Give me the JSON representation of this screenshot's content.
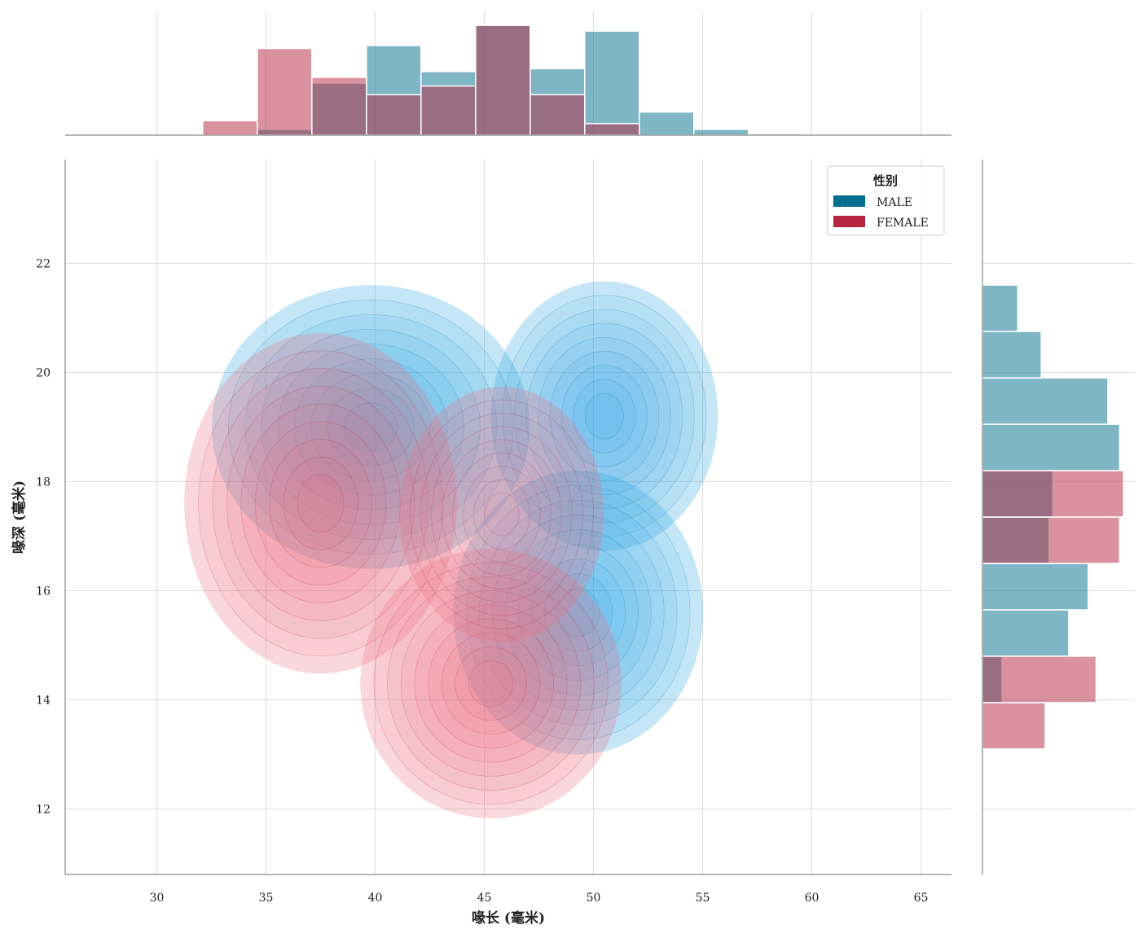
{
  "chart_data": {
    "type": "jointplot-kde-histogram",
    "xlabel": "喙长 (毫米)",
    "ylabel": "喙深 (毫米)",
    "xlim": [
      25.8,
      66.4
    ],
    "ylim": [
      10.8,
      23.9
    ],
    "xticks": [
      30,
      35,
      40,
      45,
      50,
      55,
      60,
      65
    ],
    "yticks": [
      12,
      14,
      16,
      18,
      20,
      22
    ],
    "grid": true,
    "legend": {
      "title": "性别",
      "placement": "top-right",
      "entries": [
        {
          "label": "MALE",
          "color": "#006e8e"
        },
        {
          "label": "FEMALE",
          "color": "#b5253d"
        }
      ]
    },
    "series": [
      {
        "name": "MALE",
        "color": "#006e8e",
        "kde_color": "#2aa6e4",
        "kde_modes": [
          {
            "x": 39.8,
            "y": 19.0,
            "sx": 2.8,
            "sy": 1.0,
            "w": 1.0
          },
          {
            "x": 50.5,
            "y": 19.2,
            "sx": 2.0,
            "sy": 0.95,
            "w": 0.85
          },
          {
            "x": 49.3,
            "y": 15.6,
            "sx": 2.2,
            "sy": 1.0,
            "w": 0.9
          }
        ],
        "hist_x": {
          "bin_edges": [
            32.1,
            34.6,
            37.1,
            39.6,
            42.1,
            44.6,
            47.1,
            49.6,
            52.1,
            54.6,
            57.1,
            59.6
          ],
          "counts": [
            0,
            2,
            18,
            31,
            22,
            38,
            23,
            36,
            8,
            2,
            0.5
          ]
        },
        "hist_y": {
          "bin_edges": [
            13.1,
            13.95,
            14.8,
            15.65,
            16.5,
            17.35,
            18.2,
            19.05,
            19.9,
            20.75,
            21.6
          ],
          "counts": [
            0,
            5,
            22,
            27,
            17,
            18,
            35,
            32,
            15,
            9
          ]
        }
      },
      {
        "name": "FEMALE",
        "color": "#b5253d",
        "kde_color": "#ec6f82",
        "kde_modes": [
          {
            "x": 37.5,
            "y": 17.6,
            "sx": 2.4,
            "sy": 1.2,
            "w": 1.0
          },
          {
            "x": 45.3,
            "y": 14.3,
            "sx": 2.3,
            "sy": 0.95,
            "w": 1.0
          },
          {
            "x": 45.8,
            "y": 17.4,
            "sx": 1.8,
            "sy": 0.9,
            "w": 0.35
          }
        ],
        "hist_x": {
          "bin_edges": [
            32.1,
            34.6,
            37.1,
            39.6,
            42.1,
            44.6,
            47.1,
            49.6,
            52.1,
            54.6,
            57.1,
            59.6
          ],
          "counts": [
            5,
            30,
            20,
            14,
            17,
            38,
            14,
            4,
            0,
            0,
            0
          ]
        },
        "hist_y": {
          "bin_edges": [
            13.1,
            13.95,
            14.8,
            15.65,
            16.5,
            17.35,
            18.2,
            19.05,
            19.9,
            20.75,
            21.6
          ],
          "counts": [
            16,
            29,
            0,
            0,
            35,
            36,
            0,
            0,
            0,
            0
          ]
        }
      }
    ]
  }
}
